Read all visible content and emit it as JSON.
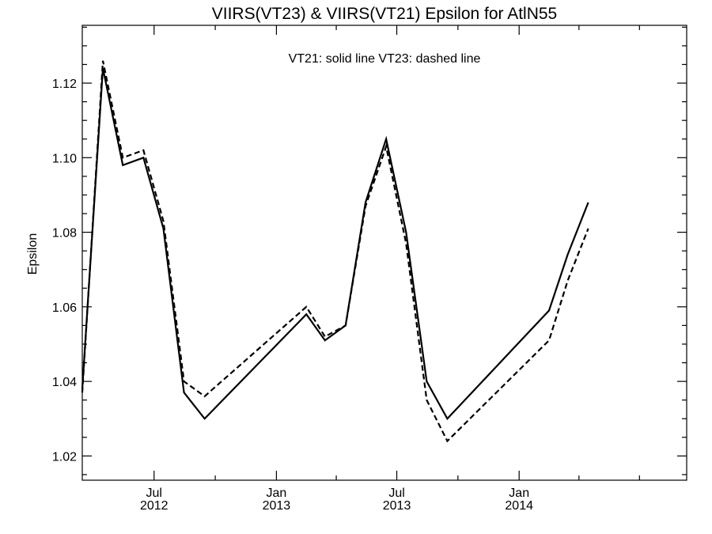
{
  "chart_data": {
    "type": "line",
    "title": "VIIRS(VT23) & VIIRS(VT21)  Epsilon for AtlN55",
    "ylabel": "Epsilon",
    "xlabel": "",
    "annotation": "VT21: solid line   VT23: dashed line",
    "xlim": [
      "2012-03-15",
      "2014-09-10"
    ],
    "ylim": [
      1.0135,
      1.1355
    ],
    "yticks": [
      1.02,
      1.04,
      1.06,
      1.08,
      1.1,
      1.12
    ],
    "ytick_labels": [
      "1.02",
      "1.04",
      "1.06",
      "1.08",
      "1.10",
      "1.12"
    ],
    "xticks": [
      {
        "date": "2012-07-01",
        "line1": "Jul",
        "line2": "2012"
      },
      {
        "date": "2013-01-01",
        "line1": "Jan",
        "line2": "2013"
      },
      {
        "date": "2013-07-01",
        "line1": "Jul",
        "line2": "2013"
      },
      {
        "date": "2014-01-01",
        "line1": "Jan",
        "line2": "2014"
      }
    ],
    "xticks_minor": [
      "2012-10-01",
      "2013-04-01",
      "2013-10-01",
      "2014-04-01",
      "2014-07-01"
    ],
    "grid": false,
    "series": [
      {
        "name": "VT21",
        "style": "solid",
        "points": [
          {
            "x": "2012-03-15",
            "y": 1.038
          },
          {
            "x": "2012-04-15",
            "y": 1.124
          },
          {
            "x": "2012-05-15",
            "y": 1.098
          },
          {
            "x": "2012-06-15",
            "y": 1.1
          },
          {
            "x": "2012-07-15",
            "y": 1.081
          },
          {
            "x": "2012-08-15",
            "y": 1.037
          },
          {
            "x": "2012-09-15",
            "y": 1.03
          },
          {
            "x": "2013-02-15",
            "y": 1.058
          },
          {
            "x": "2013-03-15",
            "y": 1.051
          },
          {
            "x": "2013-04-15",
            "y": 1.055
          },
          {
            "x": "2013-05-15",
            "y": 1.088
          },
          {
            "x": "2013-06-15",
            "y": 1.105
          },
          {
            "x": "2013-07-15",
            "y": 1.08
          },
          {
            "x": "2013-08-15",
            "y": 1.04
          },
          {
            "x": "2013-09-15",
            "y": 1.03
          },
          {
            "x": "2014-02-15",
            "y": 1.059
          },
          {
            "x": "2014-03-15",
            "y": 1.074
          },
          {
            "x": "2014-04-15",
            "y": 1.088
          }
        ]
      },
      {
        "name": "VT23",
        "style": "dashed",
        "points": [
          {
            "x": "2012-03-15",
            "y": 1.037
          },
          {
            "x": "2012-04-15",
            "y": 1.126
          },
          {
            "x": "2012-05-15",
            "y": 1.1
          },
          {
            "x": "2012-06-15",
            "y": 1.102
          },
          {
            "x": "2012-07-15",
            "y": 1.083
          },
          {
            "x": "2012-08-15",
            "y": 1.04
          },
          {
            "x": "2012-09-15",
            "y": 1.036
          },
          {
            "x": "2013-02-15",
            "y": 1.06
          },
          {
            "x": "2013-03-15",
            "y": 1.052
          },
          {
            "x": "2013-04-15",
            "y": 1.055
          },
          {
            "x": "2013-05-15",
            "y": 1.087
          },
          {
            "x": "2013-06-15",
            "y": 1.103
          },
          {
            "x": "2013-07-15",
            "y": 1.077
          },
          {
            "x": "2013-08-15",
            "y": 1.035
          },
          {
            "x": "2013-09-15",
            "y": 1.024
          },
          {
            "x": "2014-02-15",
            "y": 1.051
          },
          {
            "x": "2014-03-15",
            "y": 1.067
          },
          {
            "x": "2014-04-15",
            "y": 1.081
          }
        ]
      }
    ]
  }
}
